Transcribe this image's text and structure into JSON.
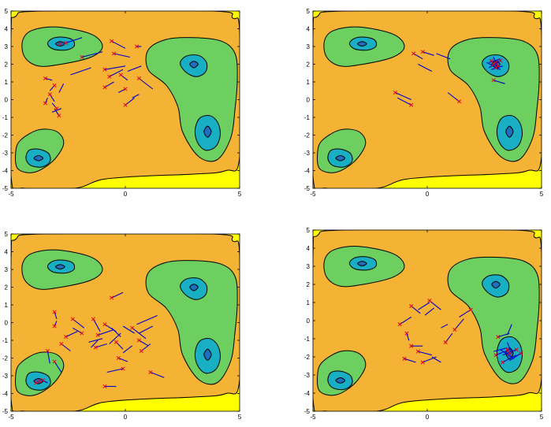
{
  "colors": {
    "level_outer": "#FFFF00",
    "level_1": "#F5B335",
    "level_2": "#6CCF5F",
    "level_3": "#18AEC4",
    "level_4": "#1E6FBF",
    "contour_line": "#000000",
    "path_line": "#0000CC",
    "point_marker": "#E0001B"
  },
  "chart_data": [
    {
      "type": "scatter",
      "title": "",
      "xlabel": "",
      "ylabel": "",
      "xlim": [
        -5,
        5
      ],
      "ylim": [
        -5,
        5
      ],
      "xticks": [
        "-5",
        "0",
        "5"
      ],
      "yticks": [
        "-5",
        "-4",
        "-3",
        "-2",
        "-1",
        "0",
        "1",
        "2",
        "3",
        "4",
        "5"
      ],
      "grid": false,
      "background": "filled contour map with four minima at (-2.8, 3.1), (3.0, 2.0), (3.6, -1.8), (-3.8, -3.3)",
      "segments": [
        [
          -2.6,
          3.2,
          -1.9,
          3.5
        ],
        [
          -0.6,
          3.3,
          0.0,
          2.9
        ],
        [
          0.5,
          3.0,
          0.7,
          3.0
        ],
        [
          -1.9,
          2.4,
          -1.0,
          2.7
        ],
        [
          -0.5,
          2.6,
          0.2,
          2.4
        ],
        [
          -1.5,
          1.8,
          -2.4,
          1.4
        ],
        [
          -0.9,
          1.7,
          0.0,
          1.9
        ],
        [
          -0.7,
          1.3,
          -0.1,
          1.7
        ],
        [
          0.6,
          1.2,
          1.2,
          0.6
        ],
        [
          -0.2,
          1.4,
          0.1,
          1.1
        ],
        [
          -0.9,
          0.7,
          -0.5,
          1.0
        ],
        [
          -3.5,
          1.2,
          -3.2,
          1.1
        ],
        [
          -3.1,
          0.8,
          -3.3,
          0.5
        ],
        [
          -3.3,
          0.3,
          -3.1,
          -0.1
        ],
        [
          -3.5,
          -0.2,
          -3.4,
          0.1
        ],
        [
          -2.9,
          0.4,
          -2.7,
          0.9
        ],
        [
          -3.0,
          -0.5,
          -3.2,
          -0.2
        ],
        [
          -2.9,
          -0.9,
          -3.1,
          -0.5
        ],
        [
          -3.2,
          -0.7,
          -2.8,
          -0.5
        ],
        [
          0.0,
          -0.3,
          0.4,
          0.1
        ],
        [
          0.3,
          0.1,
          0.6,
          0.3
        ],
        [
          0.0,
          0.6,
          -0.3,
          0.4
        ],
        [
          0.1,
          1.6,
          0.7,
          1.9
        ]
      ],
      "points": [
        [
          -2.85,
          3.15
        ],
        [
          -2.6,
          3.2
        ],
        [
          -3.5,
          1.2
        ],
        [
          -3.1,
          0.8
        ],
        [
          -3.3,
          0.3
        ],
        [
          -3.5,
          -0.2
        ],
        [
          -3.0,
          -0.5
        ],
        [
          -2.9,
          -0.9
        ],
        [
          -0.6,
          3.3
        ],
        [
          0.5,
          3.0
        ],
        [
          -1.9,
          2.4
        ],
        [
          -0.5,
          2.6
        ],
        [
          -0.9,
          1.7
        ],
        [
          -0.7,
          1.3
        ],
        [
          -0.2,
          1.4
        ],
        [
          -0.9,
          0.7
        ],
        [
          0.0,
          -0.3
        ],
        [
          0.0,
          0.6
        ],
        [
          0.6,
          1.2
        ]
      ]
    },
    {
      "type": "scatter",
      "title": "",
      "xlabel": "",
      "ylabel": "",
      "xlim": [
        -5,
        5
      ],
      "ylim": [
        -5,
        5
      ],
      "xticks": [
        "-5",
        "0",
        "5"
      ],
      "yticks": [
        "-5",
        "-4",
        "-3",
        "-2",
        "-1",
        "0",
        "1",
        "2",
        "3",
        "4",
        "5"
      ],
      "grid": false,
      "background": "filled contour map with four minima at (-2.8, 3.1), (3.0, 2.0), (3.6, -1.8), (-3.8, -3.3)",
      "segments": [
        [
          -0.6,
          2.6,
          -0.2,
          2.3
        ],
        [
          -0.2,
          2.7,
          0.3,
          2.5
        ],
        [
          0.4,
          2.6,
          1.0,
          2.3
        ],
        [
          -0.4,
          2.0,
          0.2,
          1.6
        ],
        [
          -1.4,
          0.4,
          -0.7,
          0.0
        ],
        [
          -1.3,
          0.1,
          -0.7,
          -0.3
        ],
        [
          1.4,
          -0.1,
          0.9,
          0.4
        ],
        [
          2.7,
          2.1,
          3.2,
          2.3
        ],
        [
          2.8,
          1.7,
          3.3,
          1.9
        ],
        [
          2.9,
          2.4,
          3.1,
          1.7
        ],
        [
          3.2,
          2.2,
          2.7,
          1.8
        ],
        [
          2.9,
          1.1,
          3.4,
          0.9
        ],
        [
          3.0,
          1.9,
          3.1,
          2.2
        ],
        [
          2.6,
          2.1,
          3.2,
          1.7
        ]
      ],
      "points": [
        [
          -0.6,
          2.6
        ],
        [
          -0.2,
          2.7
        ],
        [
          -1.4,
          0.4
        ],
        [
          -0.7,
          -0.3
        ],
        [
          1.4,
          -0.1
        ],
        [
          2.9,
          2.0
        ],
        [
          3.0,
          2.1
        ],
        [
          3.1,
          1.9
        ],
        [
          2.8,
          2.2
        ],
        [
          3.2,
          2.2
        ],
        [
          2.9,
          1.1
        ],
        [
          3.0,
          1.8
        ]
      ]
    },
    {
      "type": "scatter",
      "title": "",
      "xlabel": "",
      "ylabel": "",
      "xlim": [
        -5,
        5
      ],
      "ylim": [
        -5,
        5
      ],
      "xticks": [
        "-5",
        "0",
        "5"
      ],
      "yticks": [
        "-5",
        "-4",
        "-3",
        "-2",
        "-1",
        "0",
        "1",
        "2",
        "3",
        "4",
        "5"
      ],
      "grid": false,
      "background": "filled contour map with four minima at (-2.8, 3.1), (3.0, 2.0), (3.6, -1.8), (-3.8, -3.3)",
      "segments": [
        [
          -0.6,
          1.4,
          -0.1,
          1.7
        ],
        [
          -3.1,
          0.6,
          -3.0,
          0.2
        ],
        [
          -3.1,
          -0.2,
          -3.0,
          0.1
        ],
        [
          -2.3,
          0.2,
          -1.8,
          -0.3
        ],
        [
          -1.4,
          0.2,
          -1.1,
          -0.5
        ],
        [
          -1.9,
          -0.6,
          -2.3,
          -0.3
        ],
        [
          -2.6,
          -0.8,
          -2.1,
          -0.5
        ],
        [
          -1.2,
          -0.7,
          -0.5,
          -0.4
        ],
        [
          -0.9,
          -0.1,
          -0.4,
          -0.5
        ],
        [
          -0.6,
          -0.3,
          -0.2,
          -0.8
        ],
        [
          0.3,
          -0.3,
          0.9,
          -0.9
        ],
        [
          0.6,
          -0.6,
          1.2,
          -0.2
        ],
        [
          0.5,
          -0.1,
          1.4,
          0.4
        ],
        [
          0.6,
          -1.0,
          1.0,
          -1.3
        ],
        [
          0.7,
          -1.6,
          1.1,
          -1.2
        ],
        [
          -0.4,
          -1.1,
          -0.1,
          -1.5
        ],
        [
          -0.1,
          -1.7,
          0.3,
          -1.3
        ],
        [
          -1.3,
          -1.4,
          -0.8,
          -1.2
        ],
        [
          -1.6,
          -1.1,
          -1.0,
          -0.9
        ],
        [
          -2.8,
          -1.2,
          -2.4,
          -1.6
        ],
        [
          -3.4,
          -1.6,
          -3.3,
          -2.3
        ],
        [
          -3.1,
          -2.2,
          -2.8,
          -2.8
        ],
        [
          -0.3,
          -2.0,
          0.1,
          -2.2
        ],
        [
          -0.1,
          -2.6,
          -0.8,
          -2.8
        ],
        [
          -0.9,
          -3.6,
          -0.4,
          -3.6
        ],
        [
          1.1,
          -2.8,
          1.7,
          -3.1
        ],
        [
          -0.7,
          -1.2,
          -0.2,
          -0.6
        ],
        [
          -1.5,
          -1.4,
          -1.2,
          -1.0
        ],
        [
          -0.1,
          -0.2,
          0.4,
          -0.6
        ],
        [
          -3.7,
          -3.2,
          -3.4,
          -3.4
        ]
      ],
      "points": [
        [
          -0.6,
          1.4
        ],
        [
          -3.1,
          0.6
        ],
        [
          -3.1,
          -0.2
        ],
        [
          -2.3,
          0.2
        ],
        [
          -1.4,
          0.2
        ],
        [
          -1.9,
          -0.6
        ],
        [
          -2.6,
          -0.8
        ],
        [
          -1.2,
          -0.7
        ],
        [
          -0.9,
          -0.1
        ],
        [
          0.3,
          -0.3
        ],
        [
          0.6,
          -1.0
        ],
        [
          0.7,
          -1.6
        ],
        [
          -0.4,
          -1.1
        ],
        [
          -1.3,
          -1.4
        ],
        [
          -2.8,
          -1.2
        ],
        [
          -3.4,
          -1.6
        ],
        [
          -3.1,
          -2.2
        ],
        [
          -0.3,
          -2.0
        ],
        [
          -0.1,
          -2.6
        ],
        [
          -0.9,
          -3.6
        ],
        [
          1.1,
          -2.8
        ],
        [
          -3.75,
          -3.3
        ],
        [
          -3.6,
          -3.25
        ],
        [
          -3.9,
          -3.4
        ]
      ]
    },
    {
      "type": "scatter",
      "title": "",
      "xlabel": "",
      "ylabel": "",
      "xlim": [
        -5,
        5
      ],
      "ylim": [
        -5,
        5
      ],
      "xticks": [
        "-5",
        "0",
        "5"
      ],
      "yticks": [
        "-5",
        "-4",
        "-3",
        "-2",
        "-1",
        "0",
        "1",
        "2",
        "3",
        "4",
        "5"
      ],
      "grid": false,
      "background": "filled contour map with four minima at (-2.8, 3.1), (3.0, 2.0), (3.6, -1.8), (-3.8, -3.3)",
      "segments": [
        [
          -1.2,
          -0.2,
          -0.7,
          0.2
        ],
        [
          -0.7,
          0.8,
          -0.3,
          0.4
        ],
        [
          -0.4,
          0.6,
          0.1,
          1.0
        ],
        [
          0.1,
          1.1,
          0.6,
          0.6
        ],
        [
          -0.1,
          0.3,
          0.3,
          0.7
        ],
        [
          -0.9,
          -0.7,
          -0.8,
          -1.1
        ],
        [
          -0.7,
          -1.4,
          -0.2,
          -1.4
        ],
        [
          -0.4,
          -1.7,
          0.2,
          -1.9
        ],
        [
          -0.2,
          -2.3,
          0.4,
          -2.0
        ],
        [
          -1.0,
          -2.1,
          -0.5,
          -2.3
        ],
        [
          0.2,
          -2.0,
          0.6,
          -2.3
        ],
        [
          0.8,
          -1.2,
          1.1,
          -0.7
        ],
        [
          1.2,
          -0.5,
          1.6,
          0.1
        ],
        [
          1.9,
          0.6,
          1.4,
          0.2
        ],
        [
          0.6,
          -0.4,
          0.9,
          -0.2
        ],
        [
          3.1,
          -0.9,
          3.6,
          -0.7
        ],
        [
          3.7,
          -0.2,
          3.5,
          -0.8
        ],
        [
          3.0,
          -1.9,
          3.6,
          -1.6
        ],
        [
          3.3,
          -2.3,
          3.9,
          -1.9
        ],
        [
          3.9,
          -1.6,
          3.3,
          -1.9
        ],
        [
          3.5,
          -1.2,
          3.7,
          -1.8
        ],
        [
          3.2,
          -1.6,
          3.8,
          -2.1
        ],
        [
          2.9,
          -1.7,
          3.5,
          -1.5
        ],
        [
          4.1,
          -1.8,
          3.6,
          -2.2
        ]
      ],
      "points": [
        [
          -1.2,
          -0.2
        ],
        [
          -0.7,
          0.8
        ],
        [
          0.1,
          1.1
        ],
        [
          -0.9,
          -0.7
        ],
        [
          -0.7,
          -1.4
        ],
        [
          -0.4,
          -1.7
        ],
        [
          -1.0,
          -2.1
        ],
        [
          -0.2,
          -2.3
        ],
        [
          0.8,
          -1.2
        ],
        [
          1.2,
          -0.5
        ],
        [
          1.9,
          0.6
        ],
        [
          3.1,
          -0.9
        ],
        [
          3.6,
          -1.8
        ],
        [
          3.3,
          -2.3
        ],
        [
          3.9,
          -1.6
        ],
        [
          3.0,
          -1.9
        ],
        [
          4.1,
          -1.8
        ],
        [
          3.5,
          -1.6
        ]
      ]
    }
  ]
}
